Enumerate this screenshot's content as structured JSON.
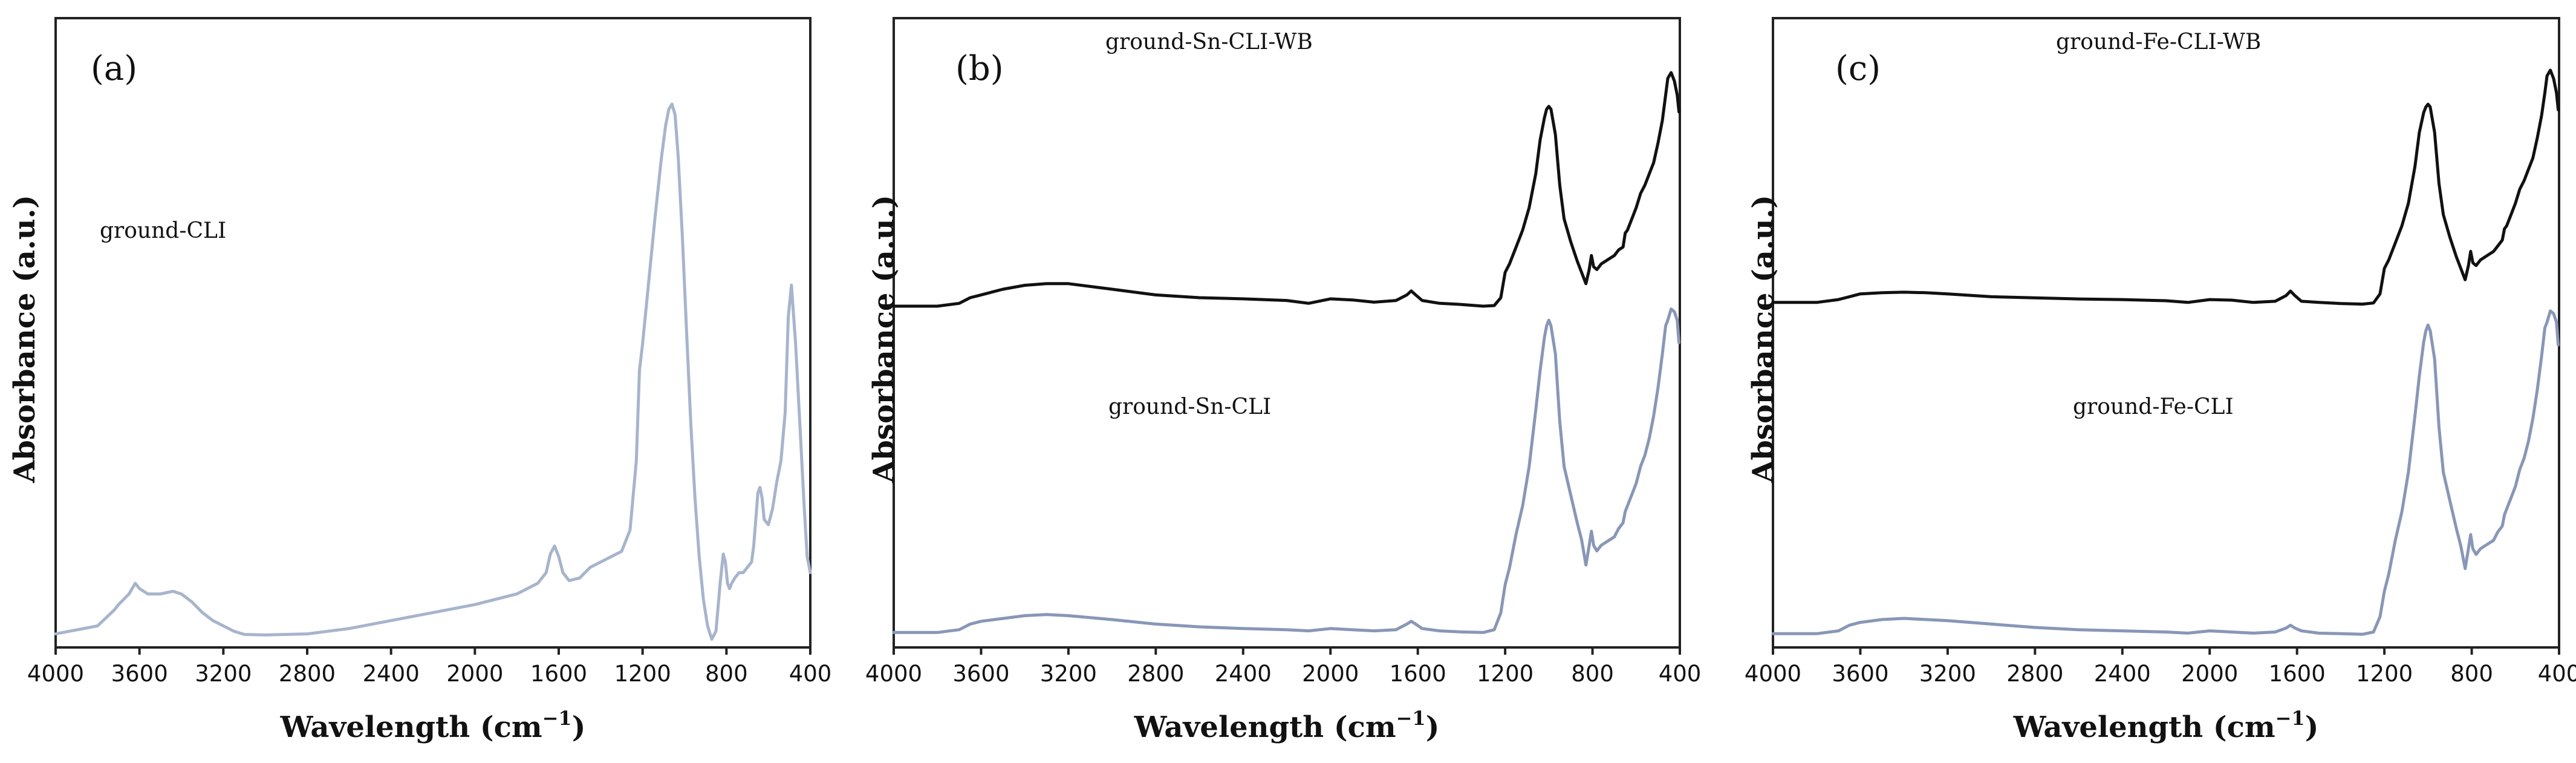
{
  "colors": {
    "light_blue": "#a7b4cc",
    "slate_blue": "#8897b6",
    "black": "#111111"
  },
  "chart_data": [
    {
      "type": "line",
      "panel_label": "(a)",
      "xlabel_main": "Wavelength (cm",
      "xlabel_sup": "−1",
      "xlabel_close": ")",
      "ylabel": "Absorbance (a.u.)",
      "xlim": [
        4000,
        400
      ],
      "ylim": [
        0,
        1
      ],
      "xticks": [
        4000,
        3600,
        3200,
        2800,
        2400,
        2000,
        1600,
        1200,
        800,
        400
      ],
      "xtick_labels": [
        "4000",
        "3600",
        "3200",
        "2800",
        "2400",
        "2000",
        "1600",
        "1200",
        "800",
        "400"
      ],
      "series": [
        {
          "name": "ground-CLI",
          "color": "#a7b4cc",
          "x": [
            4000,
            3800,
            3720,
            3700,
            3650,
            3620,
            3600,
            3560,
            3500,
            3440,
            3400,
            3350,
            3300,
            3250,
            3200,
            3150,
            3100,
            3000,
            2800,
            2600,
            2400,
            2200,
            2000,
            1800,
            1700,
            1660,
            1640,
            1620,
            1600,
            1580,
            1550,
            1500,
            1450,
            1400,
            1350,
            1300,
            1260,
            1230,
            1215,
            1200,
            1170,
            1140,
            1110,
            1090,
            1075,
            1060,
            1045,
            1030,
            1010,
            990,
            970,
            950,
            930,
            910,
            890,
            870,
            850,
            830,
            815,
            805,
            795,
            785,
            775,
            760,
            740,
            720,
            700,
            680,
            670,
            660,
            650,
            640,
            630,
            620,
            600,
            580,
            560,
            540,
            520,
            505,
            490,
            470,
            450,
            430,
            415,
            400
          ],
          "y": [
            0.005,
            0.02,
            0.05,
            0.06,
            0.08,
            0.1,
            0.09,
            0.08,
            0.08,
            0.085,
            0.08,
            0.065,
            0.045,
            0.03,
            0.02,
            0.01,
            0.004,
            0.003,
            0.005,
            0.015,
            0.03,
            0.045,
            0.06,
            0.08,
            0.1,
            0.12,
            0.155,
            0.17,
            0.15,
            0.12,
            0.105,
            0.11,
            0.13,
            0.14,
            0.15,
            0.16,
            0.2,
            0.33,
            0.5,
            0.55,
            0.67,
            0.79,
            0.9,
            0.96,
            0.99,
            1.0,
            0.98,
            0.9,
            0.75,
            0.57,
            0.4,
            0.26,
            0.15,
            0.07,
            0.02,
            -0.005,
            0.01,
            0.1,
            0.155,
            0.14,
            0.1,
            0.09,
            0.1,
            0.11,
            0.12,
            0.12,
            0.13,
            0.14,
            0.17,
            0.22,
            0.27,
            0.28,
            0.26,
            0.22,
            0.21,
            0.24,
            0.29,
            0.33,
            0.42,
            0.6,
            0.66,
            0.55,
            0.4,
            0.25,
            0.15,
            0.12
          ]
        }
      ]
    },
    {
      "type": "line",
      "panel_label": "(b)",
      "xlabel_main": "Wavelength (cm",
      "xlabel_sup": "−1",
      "xlabel_close": ")",
      "ylabel": "Absorbance (a.u.)",
      "xlim": [
        4000,
        400
      ],
      "ylim": [
        0,
        1
      ],
      "xticks": [
        4000,
        3600,
        3200,
        2800,
        2400,
        2000,
        1600,
        1200,
        800,
        400
      ],
      "xtick_labels": [
        "4000",
        "3600",
        "3200",
        "2800",
        "2400",
        "2000",
        "1600",
        "1200",
        "800",
        "400"
      ],
      "series": [
        {
          "name": "ground-Sn-CLI-WB",
          "color": "#111111",
          "x": [
            4000,
            3800,
            3700,
            3650,
            3600,
            3500,
            3400,
            3300,
            3200,
            3000,
            2800,
            2600,
            2400,
            2200,
            2100,
            2000,
            1900,
            1800,
            1700,
            1650,
            1630,
            1610,
            1580,
            1500,
            1400,
            1300,
            1250,
            1220,
            1200,
            1180,
            1150,
            1120,
            1090,
            1060,
            1040,
            1020,
            1010,
            1000,
            990,
            970,
            950,
            930,
            900,
            870,
            850,
            830,
            815,
            805,
            795,
            780,
            760,
            740,
            720,
            700,
            680,
            660,
            650,
            640,
            620,
            600,
            580,
            560,
            540,
            520,
            500,
            480,
            465,
            455,
            440,
            425,
            412,
            404
          ],
          "y": [
            0.585,
            0.585,
            0.59,
            0.6,
            0.605,
            0.615,
            0.622,
            0.625,
            0.625,
            0.615,
            0.605,
            0.6,
            0.598,
            0.595,
            0.59,
            0.598,
            0.596,
            0.592,
            0.595,
            0.605,
            0.612,
            0.605,
            0.595,
            0.59,
            0.588,
            0.585,
            0.586,
            0.6,
            0.645,
            0.66,
            0.69,
            0.72,
            0.76,
            0.82,
            0.88,
            0.92,
            0.935,
            0.94,
            0.935,
            0.89,
            0.8,
            0.74,
            0.7,
            0.665,
            0.645,
            0.625,
            0.65,
            0.675,
            0.655,
            0.65,
            0.66,
            0.665,
            0.67,
            0.675,
            0.685,
            0.69,
            0.715,
            0.72,
            0.74,
            0.76,
            0.785,
            0.8,
            0.82,
            0.84,
            0.875,
            0.915,
            0.96,
            0.99,
            1.0,
            0.985,
            0.96,
            0.93
          ]
        },
        {
          "name": "ground-Sn-CLI",
          "color": "#8897b6",
          "x": [
            4000,
            3800,
            3700,
            3650,
            3600,
            3500,
            3400,
            3300,
            3200,
            3000,
            2800,
            2600,
            2400,
            2200,
            2100,
            2000,
            1900,
            1800,
            1700,
            1650,
            1630,
            1610,
            1580,
            1500,
            1400,
            1300,
            1250,
            1220,
            1200,
            1180,
            1150,
            1120,
            1090,
            1060,
            1040,
            1020,
            1010,
            1000,
            990,
            970,
            950,
            930,
            900,
            870,
            850,
            830,
            815,
            805,
            795,
            780,
            760,
            740,
            720,
            700,
            680,
            660,
            650,
            640,
            620,
            600,
            580,
            560,
            540,
            520,
            500,
            480,
            465,
            455,
            440,
            425,
            412,
            404
          ],
          "y": [
            0.005,
            0.005,
            0.01,
            0.02,
            0.025,
            0.03,
            0.035,
            0.037,
            0.035,
            0.028,
            0.02,
            0.015,
            0.012,
            0.01,
            0.008,
            0.012,
            0.01,
            0.008,
            0.01,
            0.02,
            0.025,
            0.02,
            0.012,
            0.008,
            0.006,
            0.005,
            0.01,
            0.04,
            0.09,
            0.12,
            0.18,
            0.23,
            0.3,
            0.4,
            0.47,
            0.53,
            0.55,
            0.56,
            0.55,
            0.5,
            0.38,
            0.3,
            0.25,
            0.2,
            0.17,
            0.125,
            0.16,
            0.185,
            0.16,
            0.15,
            0.16,
            0.165,
            0.17,
            0.175,
            0.19,
            0.2,
            0.22,
            0.23,
            0.25,
            0.27,
            0.3,
            0.32,
            0.35,
            0.39,
            0.44,
            0.5,
            0.55,
            0.56,
            0.58,
            0.575,
            0.56,
            0.52
          ]
        }
      ],
      "annotations": [
        "ground-Sn-CLI-WB",
        "ground-Sn-CLI"
      ]
    },
    {
      "type": "line",
      "panel_label": "(c)",
      "xlabel_main": "Wavelength (cm",
      "xlabel_sup": "−1",
      "xlabel_close": ")",
      "ylabel": "Absorbance (a.u.)",
      "xlim": [
        4000,
        400
      ],
      "ylim": [
        0,
        1
      ],
      "xticks": [
        4000,
        3600,
        3200,
        2800,
        2400,
        2000,
        1600,
        1200,
        800,
        400
      ],
      "xtick_labels": [
        "4000",
        "3600",
        "3200",
        "2800",
        "2400",
        "2000",
        "1600",
        "1200",
        "800",
        "400"
      ],
      "series": [
        {
          "name": "ground-Fe-CLI-WB",
          "color": "#111111",
          "x": [
            4000,
            3800,
            3700,
            3650,
            3600,
            3500,
            3400,
            3300,
            3200,
            3000,
            2800,
            2600,
            2400,
            2200,
            2100,
            2000,
            1900,
            1800,
            1700,
            1650,
            1630,
            1610,
            1580,
            1500,
            1400,
            1300,
            1250,
            1220,
            1200,
            1180,
            1150,
            1120,
            1090,
            1060,
            1040,
            1020,
            1010,
            1000,
            990,
            970,
            950,
            930,
            900,
            870,
            850,
            830,
            815,
            805,
            795,
            780,
            760,
            740,
            720,
            700,
            680,
            660,
            650,
            640,
            620,
            600,
            580,
            560,
            540,
            520,
            500,
            480,
            465,
            455,
            440,
            425,
            412,
            404
          ],
          "y": [
            0.59,
            0.59,
            0.595,
            0.6,
            0.605,
            0.607,
            0.608,
            0.607,
            0.605,
            0.6,
            0.598,
            0.596,
            0.595,
            0.593,
            0.59,
            0.595,
            0.594,
            0.59,
            0.592,
            0.602,
            0.61,
            0.602,
            0.592,
            0.59,
            0.588,
            0.587,
            0.589,
            0.605,
            0.65,
            0.665,
            0.695,
            0.725,
            0.765,
            0.83,
            0.89,
            0.925,
            0.935,
            0.94,
            0.935,
            0.89,
            0.8,
            0.745,
            0.705,
            0.67,
            0.65,
            0.63,
            0.655,
            0.68,
            0.66,
            0.655,
            0.665,
            0.67,
            0.675,
            0.68,
            0.69,
            0.7,
            0.72,
            0.725,
            0.745,
            0.765,
            0.79,
            0.805,
            0.825,
            0.845,
            0.88,
            0.92,
            0.96,
            0.99,
            1.0,
            0.985,
            0.96,
            0.93
          ]
        },
        {
          "name": "ground-Fe-CLI",
          "color": "#8897b6",
          "x": [
            4000,
            3800,
            3700,
            3650,
            3600,
            3500,
            3400,
            3300,
            3200,
            3000,
            2800,
            2600,
            2400,
            2200,
            2100,
            2000,
            1900,
            1800,
            1700,
            1650,
            1630,
            1610,
            1580,
            1500,
            1400,
            1300,
            1250,
            1220,
            1200,
            1180,
            1150,
            1120,
            1090,
            1060,
            1040,
            1020,
            1010,
            1000,
            990,
            970,
            950,
            930,
            900,
            870,
            850,
            830,
            815,
            805,
            795,
            780,
            760,
            740,
            720,
            700,
            680,
            660,
            650,
            640,
            620,
            600,
            580,
            560,
            540,
            520,
            500,
            480,
            465,
            455,
            440,
            425,
            412,
            404
          ],
          "y": [
            0.005,
            0.005,
            0.01,
            0.02,
            0.025,
            0.03,
            0.032,
            0.03,
            0.028,
            0.022,
            0.016,
            0.012,
            0.01,
            0.008,
            0.006,
            0.01,
            0.008,
            0.006,
            0.008,
            0.015,
            0.02,
            0.015,
            0.01,
            0.006,
            0.005,
            0.004,
            0.008,
            0.035,
            0.08,
            0.11,
            0.17,
            0.22,
            0.29,
            0.39,
            0.46,
            0.52,
            0.54,
            0.55,
            0.54,
            0.49,
            0.37,
            0.29,
            0.24,
            0.19,
            0.16,
            0.12,
            0.155,
            0.18,
            0.155,
            0.145,
            0.155,
            0.16,
            0.165,
            0.17,
            0.185,
            0.195,
            0.215,
            0.225,
            0.245,
            0.265,
            0.295,
            0.315,
            0.345,
            0.385,
            0.435,
            0.495,
            0.545,
            0.555,
            0.575,
            0.57,
            0.555,
            0.515
          ]
        }
      ],
      "annotations": [
        "ground-Fe-CLI-WB",
        "ground-Fe-CLI"
      ]
    }
  ]
}
